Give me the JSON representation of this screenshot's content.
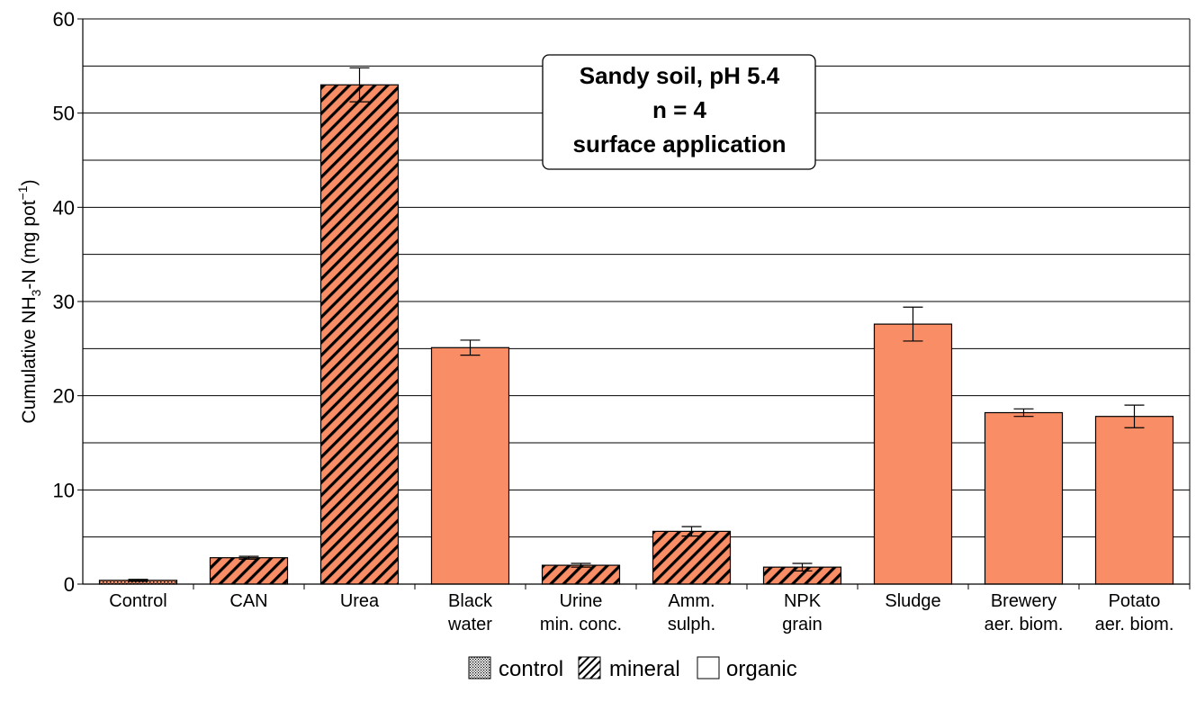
{
  "chart_data": {
    "type": "bar",
    "title_lines": [
      "Sandy soil, pH 5.4",
      "n = 4",
      "surface application"
    ],
    "ylabel": "Cumulative NH3-N (mg pot-1)",
    "ylabel_parts": {
      "main": "Cumulative NH",
      "sub": "3",
      "mid": "-N (mg pot",
      "sup": "−1",
      "end": ")"
    },
    "ylim": [
      0,
      60
    ],
    "yticks": [
      0,
      10,
      20,
      30,
      40,
      50,
      60
    ],
    "gridlines": [
      5,
      10,
      15,
      20,
      25,
      30,
      35,
      40,
      45,
      50,
      55,
      60
    ],
    "categories": [
      {
        "lines": [
          "Control"
        ],
        "value": 0.4,
        "error": 0.1,
        "group": "control"
      },
      {
        "lines": [
          "CAN"
        ],
        "value": 2.8,
        "error": 0.15,
        "group": "mineral"
      },
      {
        "lines": [
          "Urea"
        ],
        "value": 53.0,
        "error": 1.8,
        "group": "mineral"
      },
      {
        "lines": [
          "Black",
          "water"
        ],
        "value": 25.1,
        "error": 0.8,
        "group": "organic"
      },
      {
        "lines": [
          "Urine",
          "min. conc."
        ],
        "value": 2.0,
        "error": 0.2,
        "group": "mineral"
      },
      {
        "lines": [
          "Amm.",
          "sulph."
        ],
        "value": 5.6,
        "error": 0.5,
        "group": "mineral"
      },
      {
        "lines": [
          "NPK",
          "grain"
        ],
        "value": 1.8,
        "error": 0.4,
        "group": "mineral"
      },
      {
        "lines": [
          "Sludge"
        ],
        "value": 27.6,
        "error": 1.8,
        "group": "organic"
      },
      {
        "lines": [
          "Brewery",
          "aer. biom."
        ],
        "value": 18.2,
        "error": 0.4,
        "group": "organic"
      },
      {
        "lines": [
          "Potato",
          "aer. biom."
        ],
        "value": 17.8,
        "error": 1.2,
        "group": "organic"
      }
    ],
    "legend": [
      {
        "key": "control",
        "label": "control"
      },
      {
        "key": "mineral",
        "label": "mineral"
      },
      {
        "key": "organic",
        "label": "organic"
      }
    ],
    "legend_position": "bottom-center",
    "grid": true,
    "colors": {
      "bar": "#f98e66",
      "hatch": "#000000",
      "grid": "#000000",
      "frame": "#000000"
    }
  }
}
